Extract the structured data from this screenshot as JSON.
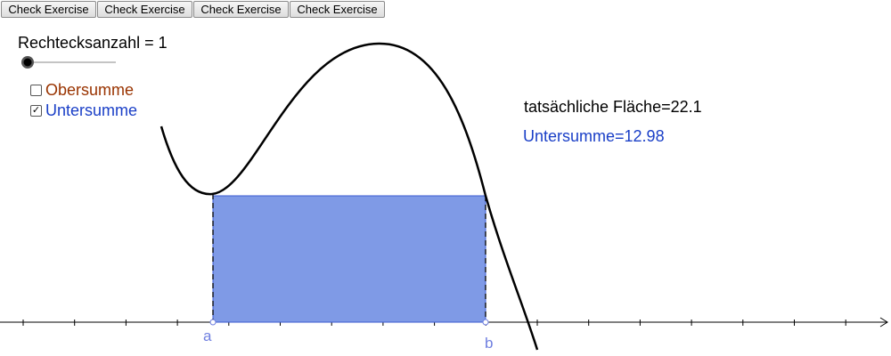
{
  "buttons": [
    "Check Exercise",
    "Check Exercise",
    "Check Exercise",
    "Check Exercise"
  ],
  "slider": {
    "label": "Rechtecksanzahl = 1"
  },
  "checkboxes": [
    {
      "label": "Obersumme",
      "checked": false,
      "color": "#993300"
    },
    {
      "label": "Untersumme",
      "checked": true,
      "color": "#1a3fc7"
    }
  ],
  "info": {
    "area": "tatsächliche Fläche=22.1",
    "lower_sum": "Untersumme=12.98"
  },
  "points": [
    "a",
    "b"
  ]
}
